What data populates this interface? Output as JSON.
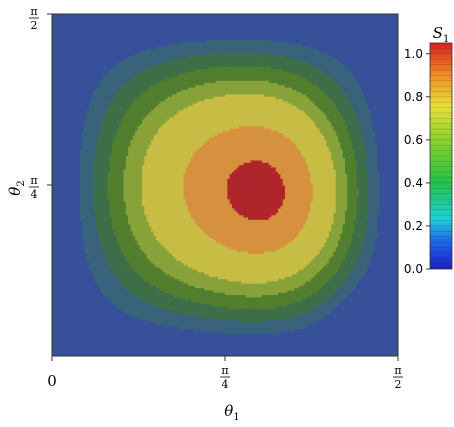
{
  "chart_data": {
    "type": "heatmap",
    "title": "",
    "xlabel": "θ1",
    "ylabel": "θ2",
    "xlim": [
      0,
      1.5708
    ],
    "ylim": [
      0,
      1.5708
    ],
    "x_ticks": [
      {
        "value": 0,
        "label": "0"
      },
      {
        "value": 0.7854,
        "num": "π",
        "den": "4"
      },
      {
        "value": 1.5708,
        "num": "π",
        "den": "2"
      }
    ],
    "y_ticks": [
      {
        "value": 0.7854,
        "num": "π",
        "den": "4"
      },
      {
        "value": 1.5708,
        "num": "π",
        "den": "2"
      }
    ],
    "colorbar": {
      "label": "S1",
      "range": [
        0,
        1.05
      ],
      "ticks": [
        "0.0",
        "0.2",
        "0.4",
        "0.6",
        "0.8",
        "1.0"
      ]
    },
    "contour_levels": [
      0.1,
      0.2,
      0.3,
      0.4,
      0.5,
      0.6,
      0.8,
      0.95
    ],
    "level_colors": [
      "#36509a",
      "#38637a",
      "#3e6f48",
      "#517f2e",
      "#88a23a",
      "#c8bd44",
      "#d6913f",
      "#b0252d"
    ],
    "grid": false
  }
}
